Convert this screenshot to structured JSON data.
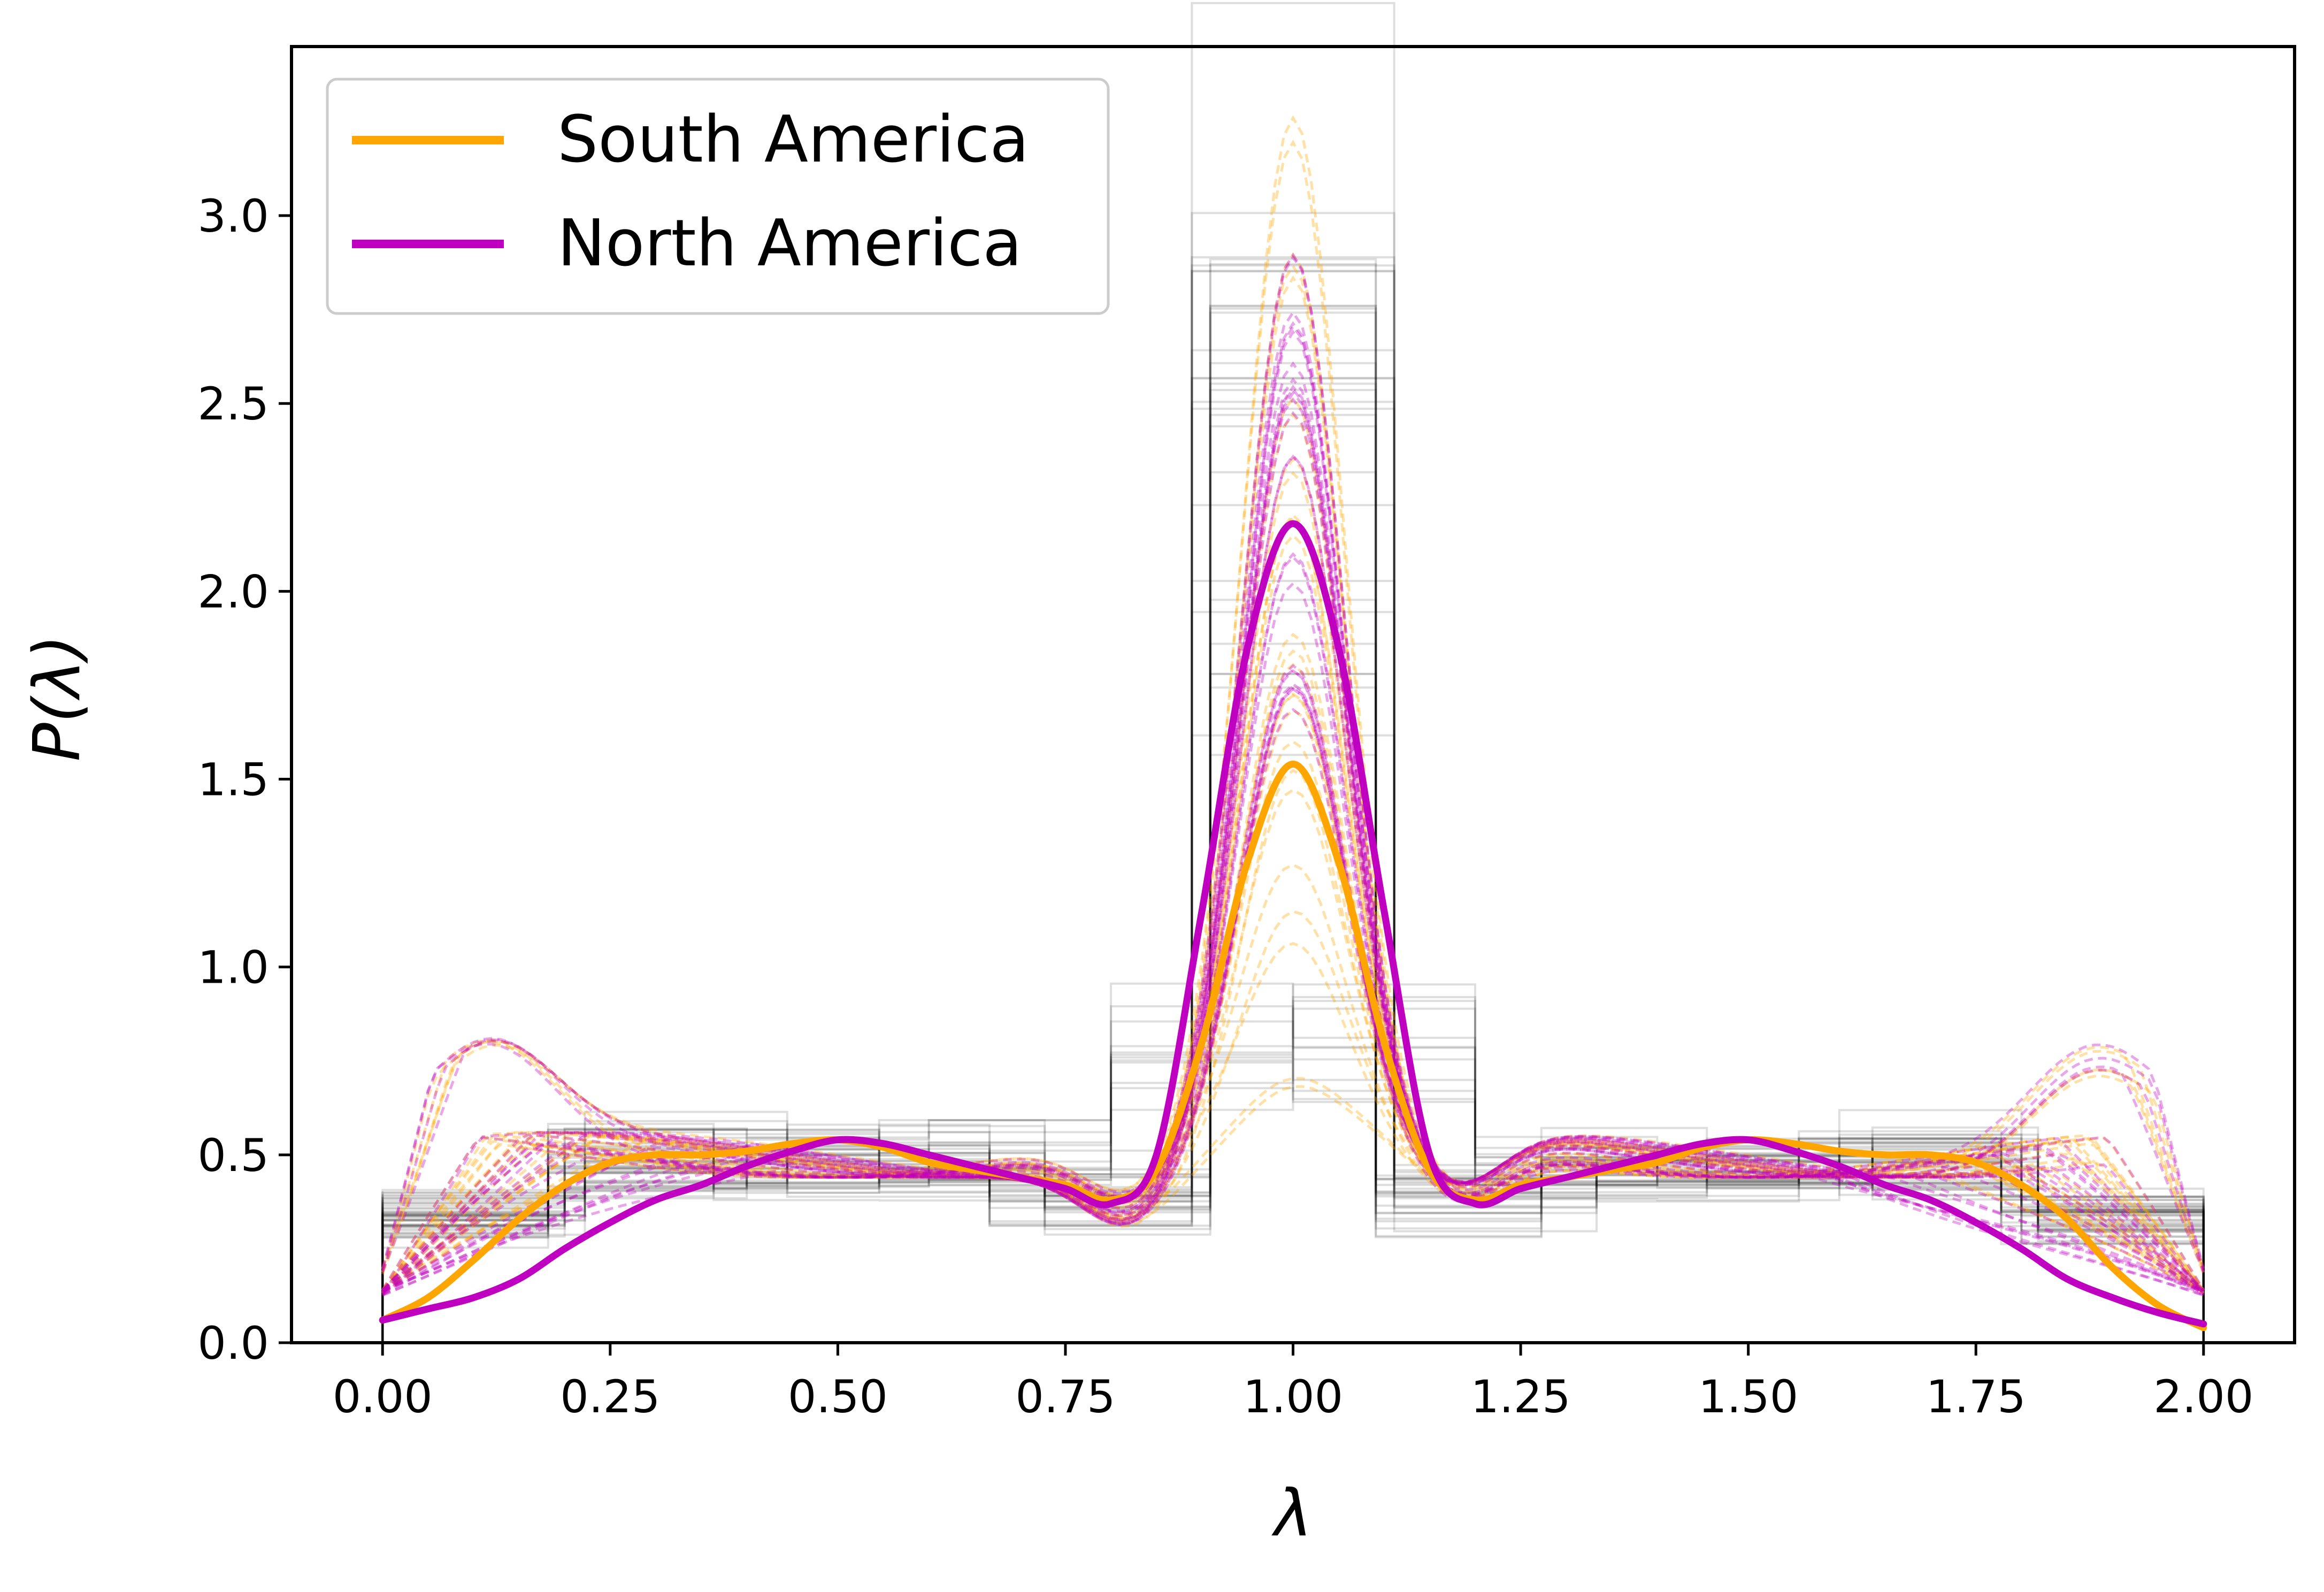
{
  "chart_data": {
    "type": "line",
    "title": "",
    "xlabel": "λ",
    "ylabel": "P(λ)",
    "xlim": [
      -0.1,
      2.1
    ],
    "ylim": [
      0.0,
      3.45
    ],
    "xticks": [
      0.0,
      0.25,
      0.5,
      0.75,
      1.0,
      1.25,
      1.5,
      1.75,
      2.0
    ],
    "xtick_labels": [
      "0.00",
      "0.25",
      "0.50",
      "0.75",
      "1.00",
      "1.25",
      "1.50",
      "1.75",
      "2.00"
    ],
    "yticks": [
      0.0,
      0.5,
      1.0,
      1.5,
      2.0,
      2.5,
      3.0
    ],
    "ytick_labels": [
      "0.0",
      "0.5",
      "1.0",
      "1.5",
      "2.0",
      "2.5",
      "3.0"
    ],
    "grid": false,
    "legend_position": "top-left",
    "series": [
      {
        "name": "South America",
        "color": "#FFA500",
        "style": "solid-thick",
        "x": [
          0.0,
          0.05,
          0.1,
          0.15,
          0.2,
          0.25,
          0.3,
          0.35,
          0.4,
          0.45,
          0.5,
          0.55,
          0.6,
          0.65,
          0.7,
          0.75,
          0.8,
          0.85,
          0.9,
          0.95,
          1.0,
          1.05,
          1.1,
          1.15,
          1.2,
          1.25,
          1.3,
          1.35,
          1.4,
          1.45,
          1.5,
          1.55,
          1.6,
          1.65,
          1.7,
          1.75,
          1.8,
          1.85,
          1.9,
          1.95,
          2.0
        ],
        "y": [
          0.06,
          0.12,
          0.22,
          0.33,
          0.42,
          0.48,
          0.5,
          0.5,
          0.51,
          0.53,
          0.54,
          0.52,
          0.48,
          0.46,
          0.44,
          0.42,
          0.38,
          0.46,
          0.8,
          1.28,
          1.54,
          1.28,
          0.8,
          0.46,
          0.38,
          0.42,
          0.44,
          0.46,
          0.48,
          0.52,
          0.54,
          0.53,
          0.51,
          0.5,
          0.5,
          0.48,
          0.42,
          0.33,
          0.2,
          0.1,
          0.04
        ]
      },
      {
        "name": "North America",
        "color": "#C000C0",
        "style": "solid-thick",
        "x": [
          0.0,
          0.05,
          0.1,
          0.15,
          0.2,
          0.25,
          0.3,
          0.35,
          0.4,
          0.45,
          0.5,
          0.55,
          0.6,
          0.65,
          0.7,
          0.75,
          0.8,
          0.85,
          0.9,
          0.95,
          1.0,
          1.05,
          1.1,
          1.15,
          1.2,
          1.25,
          1.3,
          1.35,
          1.4,
          1.45,
          1.5,
          1.55,
          1.6,
          1.65,
          1.7,
          1.75,
          1.8,
          1.85,
          1.9,
          1.95,
          2.0
        ],
        "y": [
          0.06,
          0.09,
          0.12,
          0.17,
          0.25,
          0.32,
          0.38,
          0.42,
          0.47,
          0.51,
          0.54,
          0.53,
          0.5,
          0.47,
          0.44,
          0.41,
          0.37,
          0.5,
          1.15,
          1.85,
          2.18,
          1.85,
          1.15,
          0.5,
          0.37,
          0.41,
          0.44,
          0.47,
          0.5,
          0.53,
          0.54,
          0.51,
          0.47,
          0.42,
          0.38,
          0.32,
          0.25,
          0.17,
          0.12,
          0.08,
          0.05
        ]
      }
    ],
    "background_ensembles": [
      {
        "kind": "individual-curves",
        "color": "#FFA500",
        "style": "dashed-translucent",
        "peak_range": [
          0.6,
          3.3
        ]
      },
      {
        "kind": "individual-curves",
        "color": "#C000C0",
        "style": "dashed-translucent",
        "peak_range": [
          1.5,
          2.8
        ]
      },
      {
        "kind": "step-histograms",
        "color": "#000000",
        "style": "thin-translucent",
        "peak_range": [
          1.6,
          3.25
        ]
      }
    ]
  }
}
